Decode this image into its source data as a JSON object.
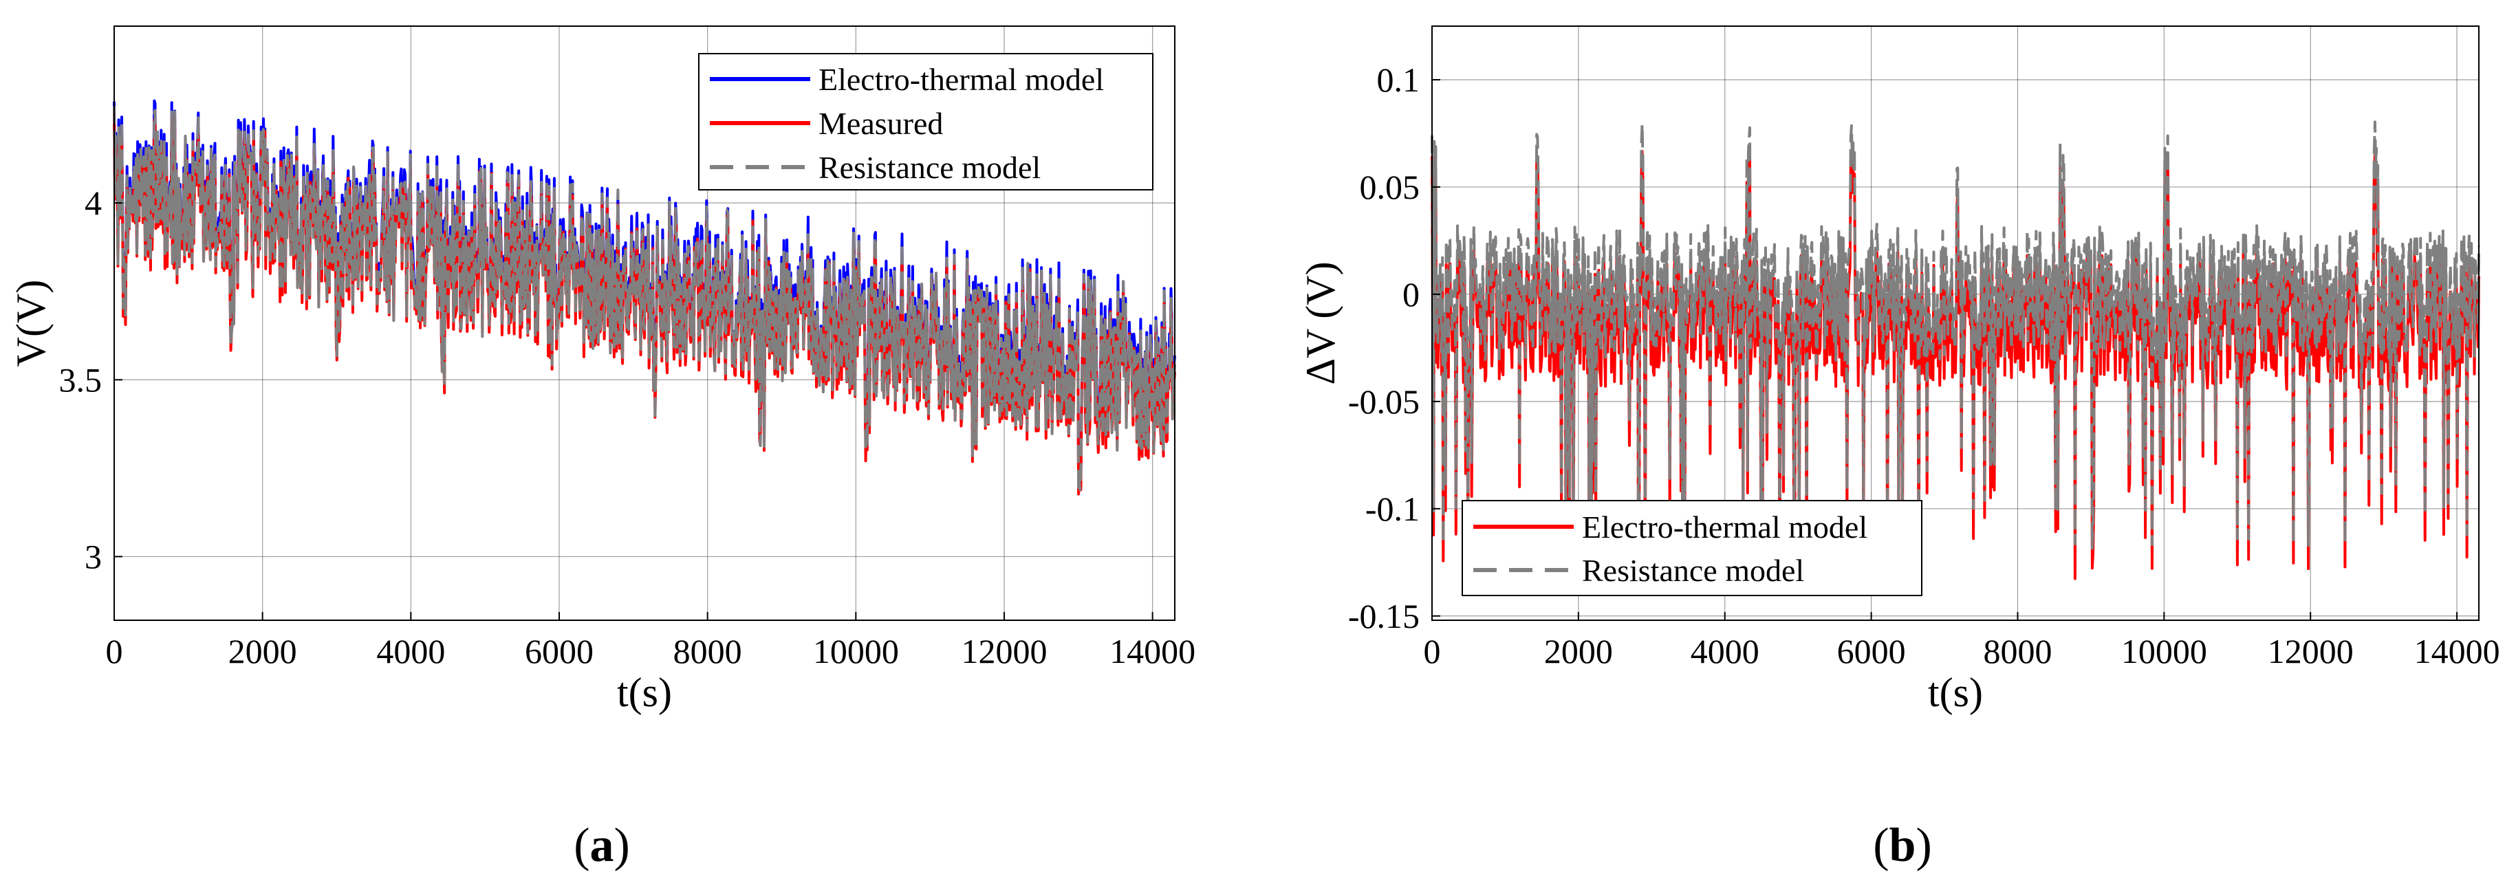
{
  "chart_data": [
    {
      "type": "line",
      "panel_label": "a",
      "xlabel": "t(s)",
      "ylabel": "V(V)",
      "xlim": [
        0,
        14300
      ],
      "ylim": [
        2.82,
        4.5
      ],
      "xticks": [
        0,
        2000,
        4000,
        6000,
        8000,
        10000,
        12000,
        14000
      ],
      "xtick_labels": [
        "0",
        "2000",
        "4000",
        "6000",
        "8000",
        "10000",
        "12000",
        "14000"
      ],
      "yticks": [
        3,
        3.5,
        4
      ],
      "ytick_labels": [
        "3",
        "3.5",
        "4"
      ],
      "grid": true,
      "legend_position": "top-right",
      "trend": {
        "start_mean": 4.02,
        "end_mean": 3.48,
        "amplitude": 0.2,
        "dip_depth": 0.34,
        "dip_period_s": 1430
      },
      "series": [
        {
          "name": "Electro-thermal model",
          "color": "#0000ff",
          "style": "solid"
        },
        {
          "name": "Measured",
          "color": "#ff0000",
          "style": "solid"
        },
        {
          "name": "Resistance model",
          "color": "#808080",
          "style": "dashed"
        }
      ]
    },
    {
      "type": "line",
      "panel_label": "b",
      "xlabel": "t(s)",
      "ylabel": "ΔV (V)",
      "xlim": [
        0,
        14300
      ],
      "ylim": [
        -0.152,
        0.125
      ],
      "xticks": [
        0,
        2000,
        4000,
        6000,
        8000,
        10000,
        12000,
        14000
      ],
      "xtick_labels": [
        "0",
        "2000",
        "4000",
        "6000",
        "8000",
        "10000",
        "12000",
        "14000"
      ],
      "yticks": [
        -0.15,
        -0.1,
        -0.05,
        0,
        0.05,
        0.1
      ],
      "ytick_labels": [
        "-0.15",
        "-0.1",
        "-0.05",
        "0",
        "0.05",
        "0.1"
      ],
      "grid": true,
      "legend_position": "bottom-left",
      "trend": {
        "mean": 0.0,
        "amplitude": 0.03,
        "peak_height": 0.08,
        "min_depth": -0.12,
        "peak_period_s": 1430
      },
      "series": [
        {
          "name": "Electro-thermal model",
          "color": "#ff0000",
          "style": "solid"
        },
        {
          "name": "Resistance model",
          "color": "#808080",
          "style": "dashed"
        }
      ]
    }
  ]
}
